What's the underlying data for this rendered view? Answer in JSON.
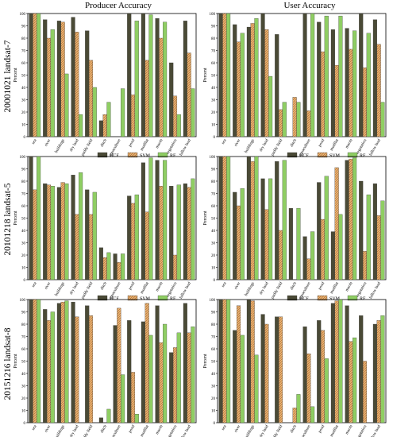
{
  "figure": {
    "column_titles": [
      "Producer Accuracy",
      "User Accuracy"
    ],
    "row_titles": [
      "20001021 landsat-7",
      "20101218 landsat-5",
      "20151216 landsat-8"
    ],
    "ylabel": "Percent",
    "yticks": [
      "0",
      "10",
      "20",
      "30",
      "40",
      "50",
      "60",
      "70",
      "80",
      "90",
      "100"
    ],
    "legend": [
      "HCF",
      "SVM",
      "RF"
    ],
    "colors": {
      "HCF": "#4a4a36",
      "SVM": "#d9a05b",
      "RF": "#8fce63"
    }
  },
  "chart_data": [
    {
      "type": "bar",
      "row": 0,
      "col": 0,
      "ylim": [
        0,
        100
      ],
      "categories": [
        "sea",
        "river",
        "buildings",
        "dry land",
        "paddy field",
        "ditch",
        "aquaculture",
        "pond",
        "mudflat",
        "marsh",
        "vegetation",
        "fallow land"
      ],
      "series": [
        {
          "name": "HCF",
          "values": [
            100,
            95,
            94,
            97,
            86,
            13,
            0,
            100,
            100,
            96,
            60,
            94
          ]
        },
        {
          "name": "SVM",
          "values": [
            100,
            80,
            93,
            85,
            62,
            18,
            0,
            34,
            62,
            80,
            33,
            68
          ]
        },
        {
          "name": "RF",
          "values": [
            100,
            87,
            51,
            18,
            40,
            28,
            39,
            94,
            99,
            93,
            18,
            39
          ]
        }
      ]
    },
    {
      "type": "bar",
      "row": 0,
      "col": 1,
      "ylim": [
        0,
        100
      ],
      "categories": [
        "sea",
        "river",
        "buildings",
        "dry land",
        "paddy field",
        "ditch",
        "aquaculture",
        "pond",
        "mudflat",
        "marsh",
        "vegetation",
        "fallow land"
      ],
      "series": [
        {
          "name": "HCF",
          "values": [
            100,
            91,
            89,
            100,
            83,
            0,
            100,
            93,
            87,
            88,
            100,
            95
          ]
        },
        {
          "name": "SVM",
          "values": [
            100,
            77,
            92,
            87,
            22,
            32,
            21,
            69,
            58,
            71,
            56,
            75
          ]
        },
        {
          "name": "RF",
          "values": [
            100,
            84,
            96,
            49,
            28,
            28,
            100,
            98,
            98,
            86,
            84,
            28
          ]
        }
      ]
    },
    {
      "type": "bar",
      "row": 1,
      "col": 0,
      "ylim": [
        0,
        100
      ],
      "categories": [
        "sea",
        "river",
        "buildings",
        "dry land",
        "paddy field",
        "ditch",
        "aquaculture",
        "pond",
        "mudflat",
        "marsh",
        "vegetation",
        "fallow land"
      ],
      "series": [
        {
          "name": "HCF",
          "values": [
            100,
            78,
            75,
            85,
            73,
            26,
            21,
            68,
            95,
            97,
            76,
            78
          ]
        },
        {
          "name": "SVM",
          "values": [
            73,
            77,
            79,
            53,
            53,
            18,
            14,
            62,
            55,
            76,
            20,
            75
          ]
        },
        {
          "name": "RF",
          "values": [
            100,
            76,
            78,
            87,
            71,
            22,
            21,
            69,
            99,
            97,
            77,
            82
          ]
        }
      ]
    },
    {
      "type": "bar",
      "row": 1,
      "col": 1,
      "ylim": [
        0,
        100
      ],
      "categories": [
        "sea",
        "river",
        "buildings",
        "dry land",
        "paddy field",
        "ditch",
        "aquaculture",
        "pond",
        "mudflat",
        "marsh",
        "vegetation",
        "fallow land"
      ],
      "series": [
        {
          "name": "HCF",
          "values": [
            100,
            71,
            100,
            82,
            96,
            58,
            35,
            79,
            39,
            97,
            80,
            78
          ]
        },
        {
          "name": "SVM",
          "values": [
            100,
            60,
            96,
            57,
            40,
            0,
            17,
            49,
            91,
            98,
            23,
            52
          ]
        },
        {
          "name": "RF",
          "values": [
            100,
            74,
            100,
            82,
            97,
            58,
            39,
            84,
            53,
            99,
            69,
            64
          ]
        }
      ]
    },
    {
      "type": "bar",
      "row": 2,
      "col": 0,
      "ylim": [
        0,
        100
      ],
      "categories": [
        "sea",
        "river",
        "buildings",
        "dry land",
        "paddy field",
        "ditch",
        "aquaculture",
        "pond",
        "mudflat",
        "marsh",
        "vegetation",
        "fallow land"
      ],
      "series": [
        {
          "name": "HCF",
          "values": [
            100,
            92,
            97,
            98,
            95,
            4,
            79,
            83,
            82,
            95,
            57,
            97
          ]
        },
        {
          "name": "SVM",
          "values": [
            100,
            83,
            98,
            86,
            87,
            0,
            93,
            41,
            97,
            65,
            61,
            73
          ]
        },
        {
          "name": "RF",
          "values": [
            100,
            90,
            99,
            0,
            0,
            11,
            39,
            7,
            71,
            80,
            73,
            78
          ]
        }
      ]
    },
    {
      "type": "bar",
      "row": 2,
      "col": 1,
      "ylim": [
        0,
        100
      ],
      "categories": [
        "sea",
        "river",
        "buildings",
        "dry land",
        "paddy field",
        "ditch",
        "aquaculture",
        "pond",
        "mudflat",
        "marsh",
        "vegetation",
        "fallow land"
      ],
      "series": [
        {
          "name": "HCF",
          "values": [
            100,
            75,
            100,
            88,
            86,
            0,
            78,
            83,
            97,
            95,
            87,
            80
          ]
        },
        {
          "name": "SVM",
          "values": [
            100,
            95,
            99,
            80,
            86,
            12,
            56,
            75,
            99,
            66,
            50,
            83
          ]
        },
        {
          "name": "RF",
          "values": [
            100,
            71,
            55,
            0,
            0,
            23,
            13,
            52,
            100,
            69,
            0,
            87
          ]
        }
      ]
    }
  ]
}
